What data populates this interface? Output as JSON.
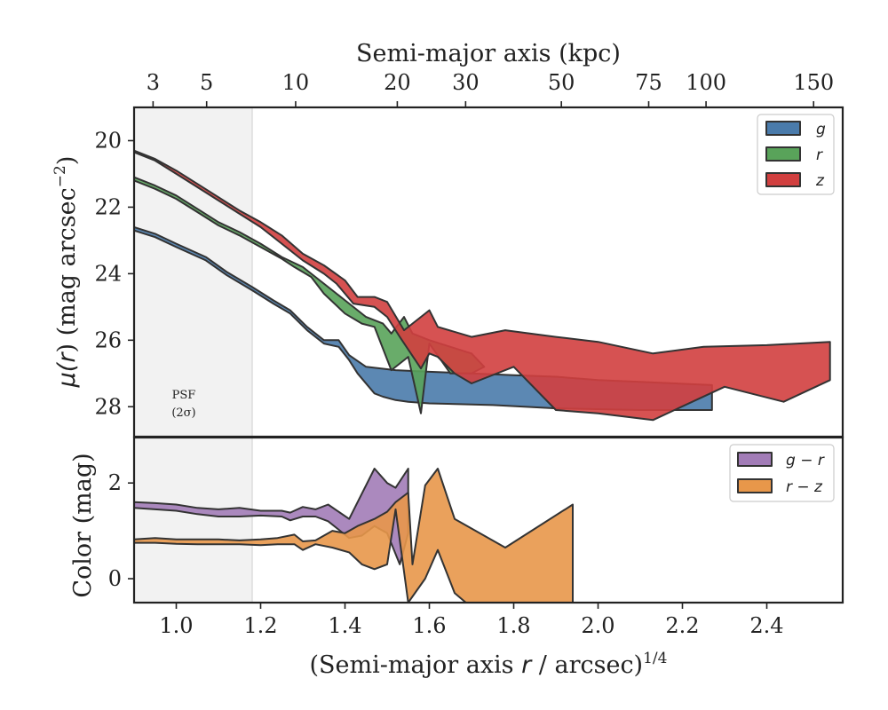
{
  "chart_data": {
    "type": "area",
    "shared_x_axis": {
      "label_pre": "(Semi-major axis ",
      "label_var": "r",
      "label_mid": " / arcsec)",
      "label_sup": "1/4",
      "xlim": [
        0.9,
        2.58
      ],
      "ticks": [
        1.0,
        1.2,
        1.4,
        1.6,
        1.8,
        2.0,
        2.2,
        2.4
      ],
      "tick_labels": [
        "1.0",
        "1.2",
        "1.4",
        "1.6",
        "1.8",
        "2.0",
        "2.2",
        "2.4"
      ]
    },
    "top_axis": {
      "label": "Semi-major axis (kpc)",
      "ticks_at_x": [
        0.945,
        1.072,
        1.283,
        1.524,
        1.686,
        1.913,
        2.12,
        2.256,
        2.511
      ],
      "tick_labels": [
        "3",
        "5",
        "10",
        "20",
        "30",
        "50",
        "75",
        "100",
        "150"
      ]
    },
    "psf_region": {
      "x_max": 1.18,
      "label_line1": "PSF",
      "label_line2": "(2σ)"
    },
    "panels": [
      {
        "name": "surface-brightness",
        "ylabel_pre": "μ(",
        "ylabel_var": "r",
        "ylabel_post": ") (mag arcsec",
        "ylabel_sup": "−2",
        "ylabel_end": ")",
        "ylim": [
          28.9,
          19.0
        ],
        "y_inverted": true,
        "yticks": [
          20,
          22,
          24,
          26,
          28
        ],
        "ytick_labels": [
          "20",
          "22",
          "24",
          "26",
          "28"
        ],
        "legend_position": "top-right",
        "series": [
          {
            "name": "g",
            "color": "#4a7bab",
            "upper": [
              [
                0.9,
                22.6
              ],
              [
                0.95,
                22.8
              ],
              [
                1.0,
                23.1
              ],
              [
                1.07,
                23.5
              ],
              [
                1.12,
                23.95
              ],
              [
                1.18,
                24.4
              ],
              [
                1.23,
                24.8
              ],
              [
                1.27,
                25.1
              ],
              [
                1.31,
                25.6
              ],
              [
                1.35,
                26.0
              ],
              [
                1.385,
                26.0
              ],
              [
                1.41,
                26.45
              ],
              [
                1.45,
                26.8
              ],
              [
                1.52,
                26.9
              ],
              [
                1.6,
                26.95
              ],
              [
                1.7,
                27.0
              ],
              [
                1.8,
                27.05
              ],
              [
                1.9,
                27.1
              ],
              [
                2.0,
                27.2
              ],
              [
                2.1,
                27.25
              ],
              [
                2.27,
                27.35
              ]
            ],
            "lower": [
              [
                2.27,
                28.1
              ],
              [
                2.1,
                28.1
              ],
              [
                1.9,
                28.05
              ],
              [
                1.75,
                27.95
              ],
              [
                1.6,
                27.9
              ],
              [
                1.55,
                27.85
              ],
              [
                1.52,
                27.8
              ],
              [
                1.49,
                27.7
              ],
              [
                1.47,
                27.6
              ],
              [
                1.43,
                27.0
              ],
              [
                1.41,
                26.6
              ],
              [
                1.385,
                26.2
              ],
              [
                1.35,
                26.1
              ],
              [
                1.31,
                25.7
              ],
              [
                1.27,
                25.2
              ],
              [
                1.23,
                24.9
              ],
              [
                1.18,
                24.5
              ],
              [
                1.12,
                24.05
              ],
              [
                1.07,
                23.6
              ],
              [
                1.0,
                23.2
              ],
              [
                0.95,
                22.9
              ],
              [
                0.9,
                22.7
              ]
            ]
          },
          {
            "name": "r",
            "color": "#59a35a",
            "upper": [
              [
                0.9,
                21.1
              ],
              [
                0.95,
                21.35
              ],
              [
                1.0,
                21.65
              ],
              [
                1.05,
                22.05
              ],
              [
                1.1,
                22.45
              ],
              [
                1.15,
                22.75
              ],
              [
                1.2,
                23.1
              ],
              [
                1.25,
                23.5
              ],
              [
                1.3,
                23.8
              ],
              [
                1.35,
                24.3
              ],
              [
                1.4,
                24.8
              ],
              [
                1.45,
                25.3
              ],
              [
                1.47,
                25.4
              ],
              [
                1.49,
                25.5
              ],
              [
                1.51,
                25.8
              ],
              [
                1.54,
                25.3
              ],
              [
                1.56,
                25.8
              ],
              [
                1.6,
                26.0
              ],
              [
                1.65,
                26.2
              ],
              [
                1.7,
                26.4
              ],
              [
                1.73,
                26.8
              ],
              [
                1.7,
                27.0
              ],
              [
                1.65,
                27.0
              ],
              [
                1.6,
                26.1
              ],
              [
                1.58,
                28.2
              ]
            ],
            "lower": [
              [
                1.58,
                28.2
              ],
              [
                1.55,
                26.5
              ],
              [
                1.51,
                26.9
              ],
              [
                1.47,
                25.6
              ],
              [
                1.44,
                25.5
              ],
              [
                1.4,
                25.2
              ],
              [
                1.35,
                24.6
              ],
              [
                1.32,
                24.1
              ],
              [
                1.28,
                23.8
              ],
              [
                1.25,
                23.55
              ],
              [
                1.2,
                23.2
              ],
              [
                1.15,
                22.85
              ],
              [
                1.1,
                22.55
              ],
              [
                1.05,
                22.15
              ],
              [
                1.0,
                21.75
              ],
              [
                0.95,
                21.45
              ],
              [
                0.9,
                21.2
              ]
            ]
          },
          {
            "name": "z",
            "color": "#d13f3f",
            "upper": [
              [
                0.9,
                20.3
              ],
              [
                0.95,
                20.55
              ],
              [
                1.0,
                20.9
              ],
              [
                1.05,
                21.3
              ],
              [
                1.1,
                21.7
              ],
              [
                1.15,
                22.1
              ],
              [
                1.2,
                22.45
              ],
              [
                1.25,
                22.85
              ],
              [
                1.3,
                23.4
              ],
              [
                1.35,
                23.75
              ],
              [
                1.4,
                24.2
              ],
              [
                1.43,
                24.7
              ],
              [
                1.47,
                24.7
              ],
              [
                1.5,
                24.85
              ],
              [
                1.54,
                25.7
              ],
              [
                1.6,
                25.1
              ],
              [
                1.62,
                25.6
              ],
              [
                1.7,
                25.9
              ],
              [
                1.78,
                25.7
              ],
              [
                1.9,
                25.9
              ],
              [
                2.0,
                26.05
              ],
              [
                2.13,
                26.4
              ],
              [
                2.25,
                26.2
              ],
              [
                2.4,
                26.15
              ],
              [
                2.55,
                26.05
              ]
            ],
            "lower": [
              [
                2.55,
                27.2
              ],
              [
                2.44,
                27.85
              ],
              [
                2.3,
                27.4
              ],
              [
                2.13,
                28.4
              ],
              [
                2.0,
                28.2
              ],
              [
                1.9,
                28.1
              ],
              [
                1.8,
                26.8
              ],
              [
                1.7,
                27.3
              ],
              [
                1.66,
                27.0
              ],
              [
                1.62,
                26.5
              ],
              [
                1.6,
                26.4
              ],
              [
                1.58,
                26.85
              ],
              [
                1.53,
                25.9
              ],
              [
                1.5,
                25.3
              ],
              [
                1.47,
                25.0
              ],
              [
                1.42,
                24.9
              ],
              [
                1.38,
                24.3
              ],
              [
                1.35,
                24.0
              ],
              [
                1.3,
                23.6
              ],
              [
                1.25,
                23.1
              ],
              [
                1.2,
                22.6
              ],
              [
                1.15,
                22.2
              ],
              [
                1.1,
                21.8
              ],
              [
                1.05,
                21.4
              ],
              [
                1.0,
                21.0
              ],
              [
                0.95,
                20.6
              ],
              [
                0.9,
                20.35
              ]
            ]
          }
        ]
      },
      {
        "name": "color",
        "ylabel": "Color (mag)",
        "ylim": [
          -0.5,
          2.95
        ],
        "y_inverted": false,
        "yticks": [
          0,
          2
        ],
        "ytick_labels": [
          "0",
          "2"
        ],
        "legend_position": "top-right",
        "series": [
          {
            "name": "g − r",
            "legend_label": "g − r",
            "color": "#a27cb7",
            "upper": [
              [
                0.9,
                1.6
              ],
              [
                0.95,
                1.58
              ],
              [
                1.0,
                1.55
              ],
              [
                1.05,
                1.48
              ],
              [
                1.1,
                1.45
              ],
              [
                1.15,
                1.48
              ],
              [
                1.2,
                1.42
              ],
              [
                1.25,
                1.42
              ],
              [
                1.27,
                1.38
              ],
              [
                1.3,
                1.5
              ],
              [
                1.33,
                1.45
              ],
              [
                1.36,
                1.55
              ],
              [
                1.41,
                1.25
              ],
              [
                1.47,
                2.3
              ],
              [
                1.5,
                2.0
              ],
              [
                1.52,
                1.9
              ],
              [
                1.55,
                2.3
              ]
            ],
            "lower": [
              [
                1.55,
                0.95
              ],
              [
                1.53,
                0.3
              ],
              [
                1.5,
                0.95
              ],
              [
                1.47,
                1.1
              ],
              [
                1.44,
                0.9
              ],
              [
                1.41,
                0.85
              ],
              [
                1.36,
                1.2
              ],
              [
                1.33,
                1.3
              ],
              [
                1.3,
                1.3
              ],
              [
                1.27,
                1.22
              ],
              [
                1.25,
                1.3
              ],
              [
                1.2,
                1.32
              ],
              [
                1.15,
                1.3
              ],
              [
                1.1,
                1.3
              ],
              [
                1.05,
                1.35
              ],
              [
                1.0,
                1.42
              ],
              [
                0.95,
                1.45
              ],
              [
                0.9,
                1.48
              ]
            ]
          },
          {
            "name": "r − z",
            "legend_label": "r − z",
            "color": "#e8974a",
            "upper": [
              [
                0.9,
                0.82
              ],
              [
                0.95,
                0.85
              ],
              [
                1.0,
                0.82
              ],
              [
                1.05,
                0.82
              ],
              [
                1.1,
                0.82
              ],
              [
                1.15,
                0.8
              ],
              [
                1.2,
                0.82
              ],
              [
                1.24,
                0.85
              ],
              [
                1.28,
                0.92
              ],
              [
                1.3,
                0.78
              ],
              [
                1.33,
                0.8
              ],
              [
                1.37,
                1.0
              ],
              [
                1.4,
                0.95
              ],
              [
                1.43,
                1.1
              ],
              [
                1.47,
                1.25
              ],
              [
                1.5,
                1.4
              ],
              [
                1.52,
                1.6
              ],
              [
                1.55,
                1.8
              ],
              [
                1.56,
                0.3
              ],
              [
                1.59,
                1.95
              ],
              [
                1.62,
                2.3
              ],
              [
                1.66,
                1.25
              ],
              [
                1.78,
                0.65
              ],
              [
                1.94,
                1.55
              ]
            ],
            "lower": [
              [
                1.94,
                -0.6
              ],
              [
                1.7,
                -0.6
              ],
              [
                1.66,
                -0.3
              ],
              [
                1.62,
                0.6
              ],
              [
                1.59,
                0.0
              ],
              [
                1.55,
                -0.5
              ],
              [
                1.52,
                1.45
              ],
              [
                1.5,
                0.3
              ],
              [
                1.47,
                0.2
              ],
              [
                1.44,
                0.3
              ],
              [
                1.41,
                0.55
              ],
              [
                1.37,
                0.65
              ],
              [
                1.33,
                0.72
              ],
              [
                1.3,
                0.6
              ],
              [
                1.28,
                0.72
              ],
              [
                1.24,
                0.72
              ],
              [
                1.2,
                0.7
              ],
              [
                1.15,
                0.72
              ],
              [
                1.1,
                0.72
              ],
              [
                1.05,
                0.72
              ],
              [
                1.0,
                0.73
              ],
              [
                0.95,
                0.75
              ],
              [
                0.9,
                0.75
              ]
            ]
          }
        ]
      }
    ]
  }
}
